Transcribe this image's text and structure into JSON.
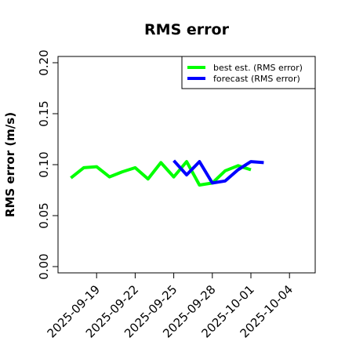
{
  "chart_data": {
    "type": "line",
    "title": "RMS error",
    "xlabel": "",
    "ylabel": "RMS error (m/s)",
    "ylim": [
      0,
      0.21
    ],
    "y_ticks": [
      0.0,
      0.05,
      0.1,
      0.15,
      0.2
    ],
    "y_tick_labels": [
      "0.00",
      "0.05",
      "0.10",
      "0.15",
      "0.20"
    ],
    "x_ticks": [
      "2025-09-19",
      "2025-09-22",
      "2025-09-25",
      "2025-09-28",
      "2025-10-01",
      "2025-10-04"
    ],
    "x_tick_colors": [
      "#000000",
      "#000000",
      "#228b22",
      "#000000",
      "#000000",
      "#000000"
    ],
    "xlim": [
      "2025-09-16",
      "2025-10-06"
    ],
    "grid": false,
    "legend_position": "top-right",
    "series": [
      {
        "name": "best est. (RMS error)",
        "color": "#00ff00",
        "x": [
          "2025-09-17",
          "2025-09-18",
          "2025-09-19",
          "2025-09-20",
          "2025-09-21",
          "2025-09-22",
          "2025-09-23",
          "2025-09-24",
          "2025-09-25",
          "2025-09-26",
          "2025-09-27",
          "2025-09-28",
          "2025-09-29",
          "2025-09-30",
          "2025-10-01",
          "2025-10-02"
        ],
        "values": [
          0.087,
          0.097,
          0.098,
          0.088,
          0.093,
          0.097,
          0.086,
          0.102,
          0.088,
          0.103,
          0.08,
          0.082,
          0.094,
          0.099,
          0.095,
          null
        ]
      },
      {
        "name": "forecast (RMS error)",
        "color": "#0000ff",
        "x": [
          "2025-09-25",
          "2025-09-26",
          "2025-09-27",
          "2025-09-28",
          "2025-09-29",
          "2025-09-30",
          "2025-10-01",
          "2025-10-02"
        ],
        "values": [
          0.104,
          0.09,
          0.103,
          0.082,
          0.084,
          0.095,
          0.103,
          0.102
        ]
      }
    ]
  }
}
